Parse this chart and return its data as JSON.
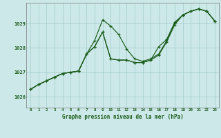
{
  "title": "Graphe pression niveau de la mer (hPa)",
  "background_color": "#cce8e8",
  "grid_color": "#aacfcf",
  "line_color": "#1a5c1a",
  "xlim": [
    -0.5,
    23.5
  ],
  "ylim": [
    1025.55,
    1029.85
  ],
  "xticks": [
    0,
    1,
    2,
    3,
    4,
    5,
    6,
    7,
    8,
    9,
    10,
    11,
    12,
    13,
    14,
    15,
    16,
    17,
    18,
    19,
    20,
    21,
    22,
    23
  ],
  "yticks": [
    1026,
    1027,
    1028,
    1029
  ],
  "series": [
    [
      1026.3,
      1026.5,
      1026.65,
      1026.8,
      1026.95,
      1027.0,
      1027.05,
      1027.75,
      1028.05,
      1028.65,
      1027.55,
      1027.5,
      1027.5,
      1027.4,
      1027.4,
      1027.5,
      1027.7,
      1028.25,
      1028.95,
      1029.35,
      1029.5,
      1029.6,
      1029.5,
      1029.1
    ],
    [
      1026.3,
      1026.5,
      1026.65,
      1026.8,
      1026.95,
      1027.0,
      1027.05,
      1027.75,
      1028.3,
      1029.15,
      1028.9,
      1028.55,
      1027.95,
      1027.55,
      1027.45,
      1027.55,
      1027.75,
      1028.3,
      1029.0,
      1029.35,
      1029.5,
      1029.6,
      1029.5,
      1029.1
    ],
    [
      1026.3,
      1026.5,
      1026.65,
      1026.8,
      1026.95,
      1027.0,
      1027.05,
      1027.75,
      1028.05,
      1028.65,
      1027.55,
      1027.5,
      1027.5,
      1027.4,
      1027.4,
      1027.5,
      1028.05,
      1028.35,
      1029.05,
      1029.35,
      1029.5,
      1029.6,
      1029.5,
      1029.1
    ]
  ]
}
